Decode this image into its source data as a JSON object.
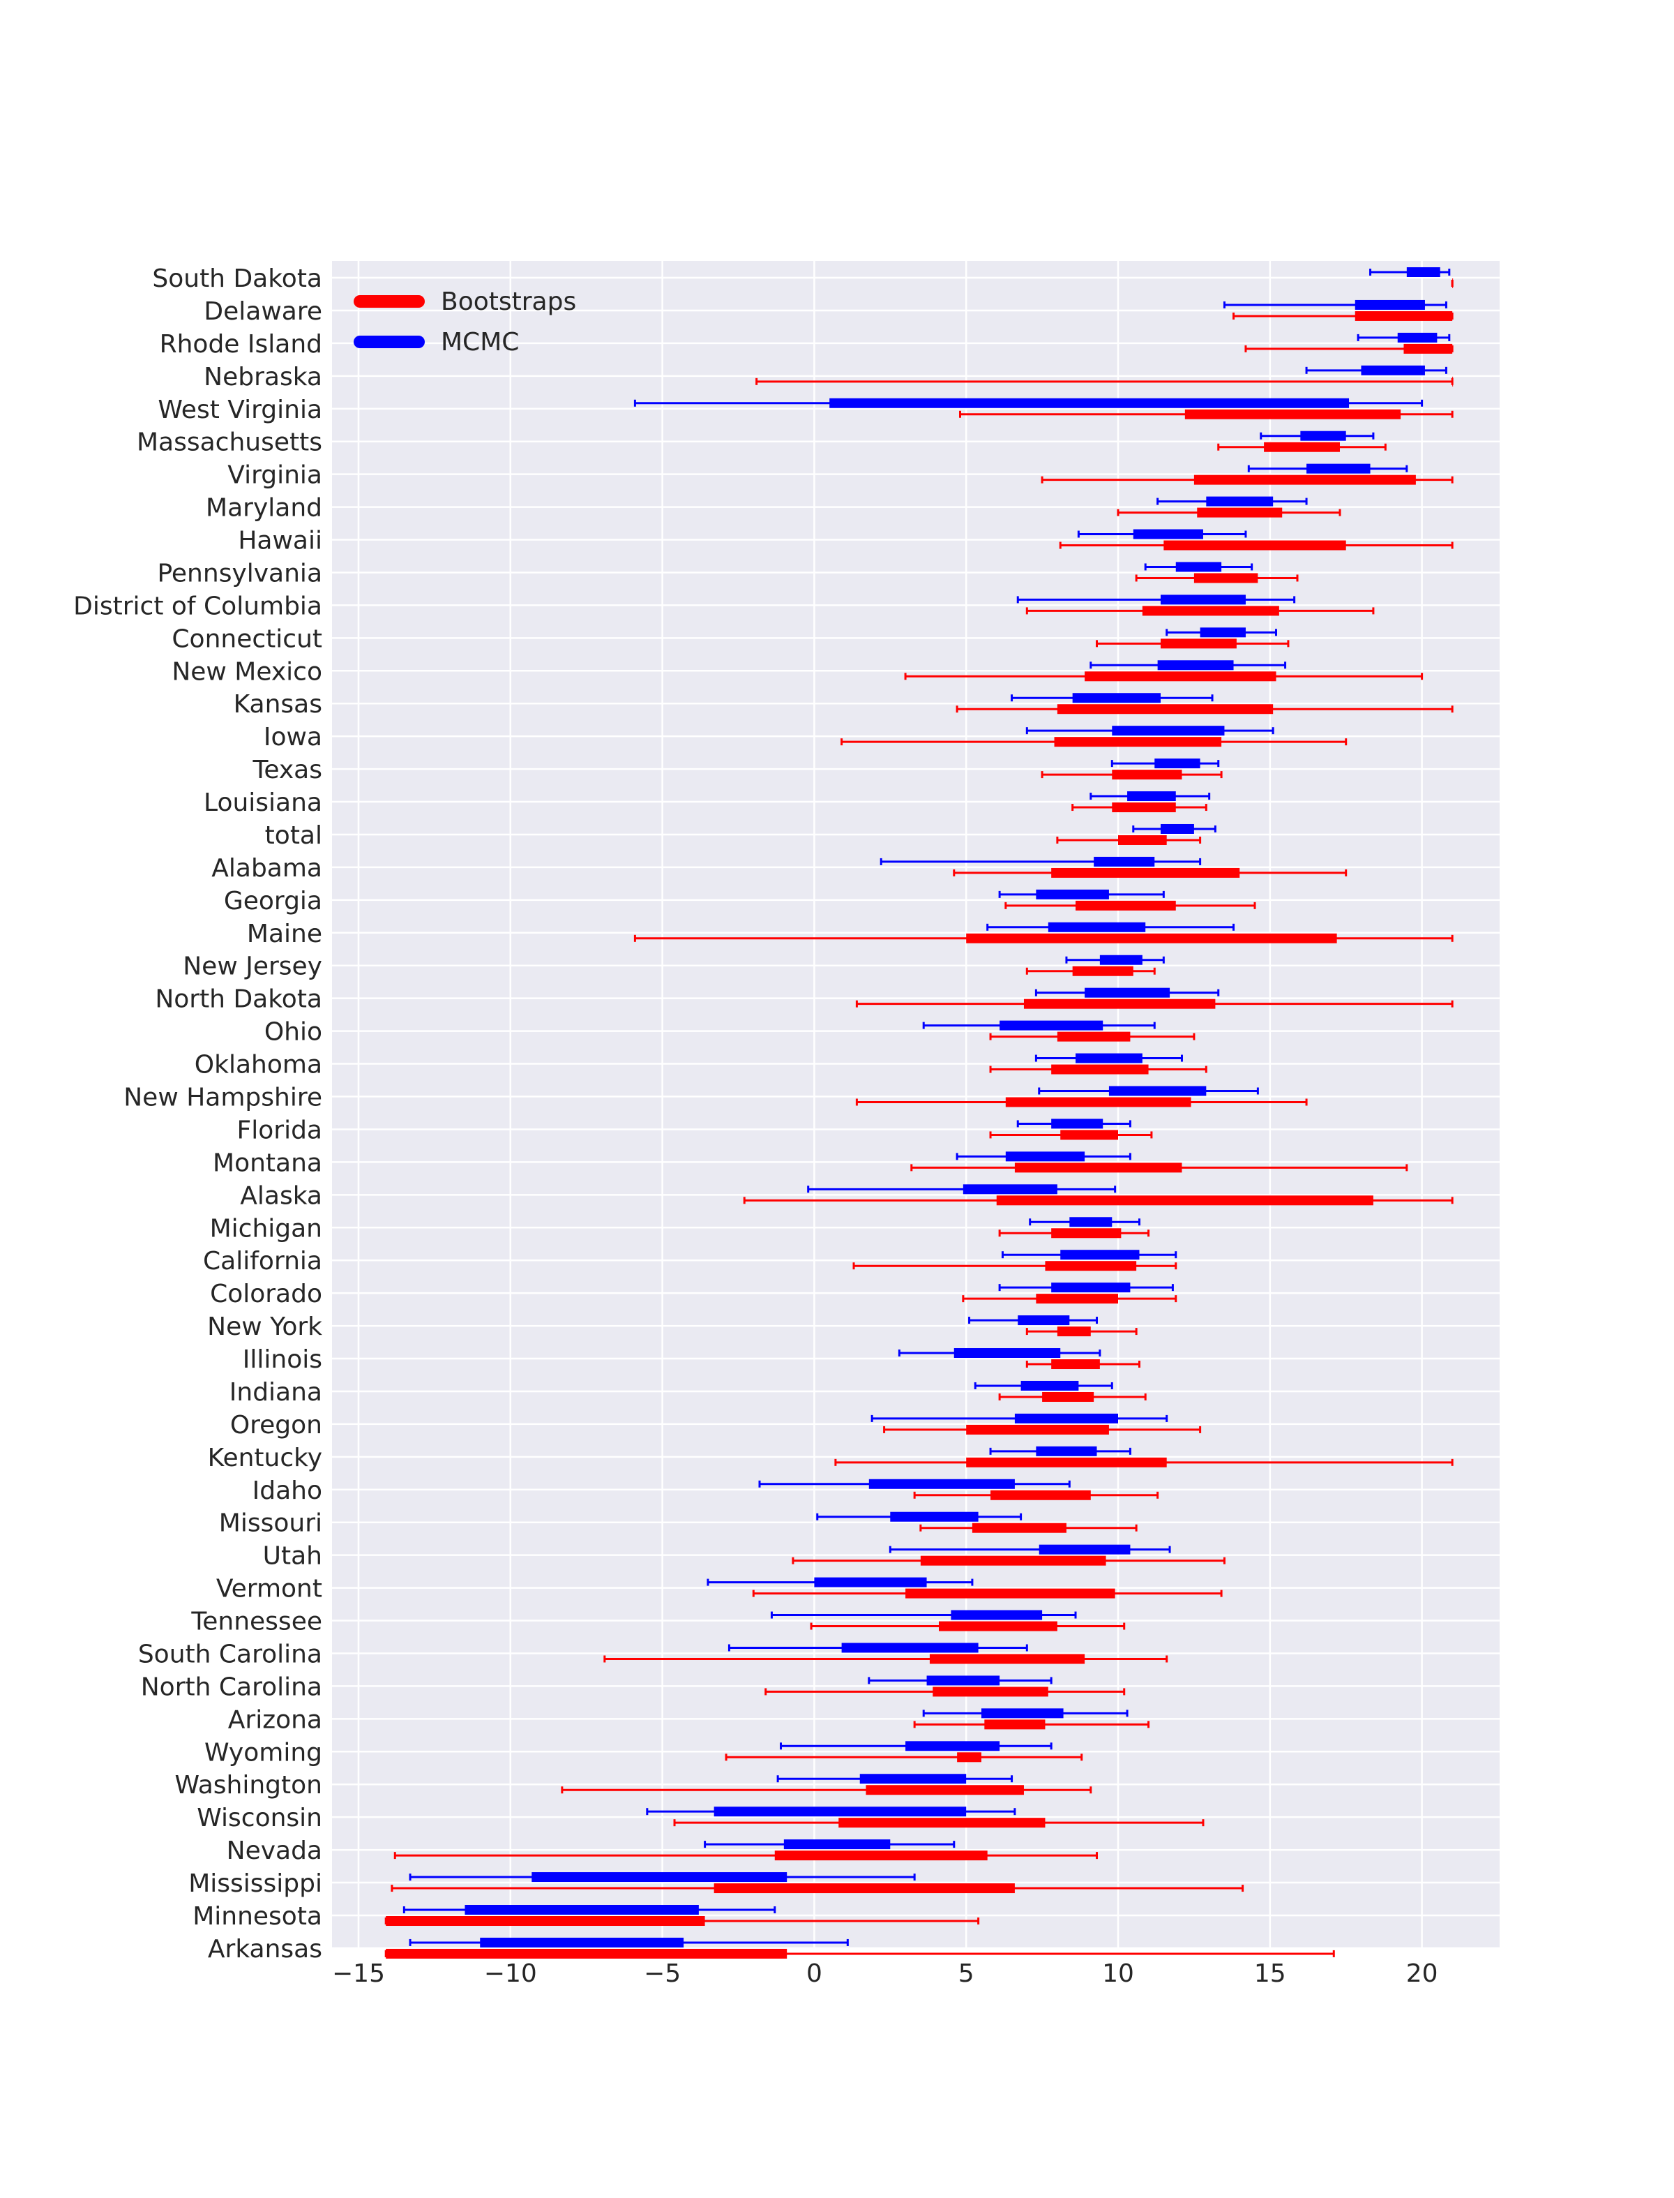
{
  "chart_data": {
    "type": "interval",
    "title": "",
    "xlabel": "",
    "ylabel": "",
    "xlim": [
      -15.5,
      22.5
    ],
    "xticks": [
      -15,
      -10,
      -5,
      0,
      5,
      10,
      15,
      20
    ],
    "xtick_labels": [
      "−15",
      "−10",
      "−5",
      "0",
      "5",
      "10",
      "15",
      "20"
    ],
    "grid": true,
    "legend_position": "top-left",
    "categories": [
      "South Dakota",
      "Delaware",
      "Rhode Island",
      "Nebraska",
      "West Virginia",
      "Massachusetts",
      "Virginia",
      "Maryland",
      "Hawaii",
      "Pennsylvania",
      "District of Columbia",
      "Connecticut",
      "New Mexico",
      "Kansas",
      "Iowa",
      "Texas",
      "Louisiana",
      "total",
      "Alabama",
      "Georgia",
      "Maine",
      "New Jersey",
      "North Dakota",
      "Ohio",
      "Oklahoma",
      "New Hampshire",
      "Florida",
      "Montana",
      "Alaska",
      "Michigan",
      "California",
      "Colorado",
      "New York",
      "Illinois",
      "Indiana",
      "Oregon",
      "Kentucky",
      "Idaho",
      "Missouri",
      "Utah",
      "Vermont",
      "Tennessee",
      "South Carolina",
      "North Carolina",
      "Arizona",
      "Wyoming",
      "Washington",
      "Wisconsin",
      "Nevada",
      "Mississippi",
      "Minnesota",
      "Arkansas"
    ],
    "series": [
      {
        "name": "Bootstraps",
        "color": "#ff0000",
        "intervals": [
          [
            21.0,
            21.0,
            21.0,
            21.0
          ],
          [
            13.8,
            17.8,
            21.0,
            21.0
          ],
          [
            14.2,
            19.4,
            21.0,
            21.0
          ],
          [
            -1.9,
            21.0,
            21.0,
            21.0
          ],
          [
            4.8,
            12.2,
            19.3,
            21.0
          ],
          [
            13.3,
            14.8,
            17.3,
            18.8
          ],
          [
            7.5,
            12.5,
            19.8,
            21.0
          ],
          [
            10.0,
            12.6,
            15.4,
            17.3
          ],
          [
            8.1,
            11.5,
            17.5,
            21.0
          ],
          [
            10.6,
            12.5,
            14.6,
            15.9
          ],
          [
            7.0,
            10.8,
            15.3,
            18.4
          ],
          [
            9.3,
            11.4,
            13.9,
            15.6
          ],
          [
            3.0,
            8.9,
            15.2,
            20.0
          ],
          [
            4.7,
            8.0,
            15.1,
            21.0
          ],
          [
            0.9,
            7.9,
            13.4,
            17.5
          ],
          [
            7.5,
            9.8,
            12.1,
            13.4
          ],
          [
            8.5,
            9.8,
            11.9,
            12.9
          ],
          [
            8.0,
            10.0,
            11.6,
            12.7
          ],
          [
            4.6,
            7.8,
            14.0,
            17.5
          ],
          [
            6.3,
            8.6,
            11.9,
            14.5
          ],
          [
            -5.9,
            5.0,
            17.2,
            21.0
          ],
          [
            7.0,
            8.5,
            10.5,
            11.2
          ],
          [
            1.4,
            6.9,
            13.2,
            21.0
          ],
          [
            5.8,
            8.0,
            10.4,
            12.5
          ],
          [
            5.8,
            7.8,
            11.0,
            12.9
          ],
          [
            1.4,
            6.3,
            12.4,
            16.2
          ],
          [
            5.8,
            8.1,
            10.0,
            11.1
          ],
          [
            3.2,
            6.6,
            12.1,
            19.5
          ],
          [
            -2.3,
            6.0,
            18.4,
            21.0
          ],
          [
            6.1,
            7.8,
            10.1,
            11.0
          ],
          [
            1.3,
            7.6,
            10.6,
            11.9
          ],
          [
            4.9,
            7.3,
            10.0,
            11.9
          ],
          [
            7.0,
            8.0,
            9.1,
            10.6
          ],
          [
            7.0,
            7.8,
            9.4,
            10.7
          ],
          [
            6.1,
            7.5,
            9.2,
            10.9
          ],
          [
            2.3,
            5.0,
            9.7,
            12.7
          ],
          [
            0.7,
            5.0,
            11.6,
            21.0
          ],
          [
            3.3,
            5.8,
            9.1,
            11.3
          ],
          [
            3.5,
            5.2,
            8.3,
            10.6
          ],
          [
            -0.7,
            3.5,
            9.6,
            13.5
          ],
          [
            -2.0,
            3.0,
            9.9,
            13.4
          ],
          [
            -0.1,
            4.1,
            8.0,
            10.2
          ],
          [
            -6.9,
            3.8,
            8.9,
            11.6
          ],
          [
            -1.6,
            3.9,
            7.7,
            10.2
          ],
          [
            3.3,
            5.6,
            7.6,
            11.0
          ],
          [
            -2.9,
            4.7,
            5.5,
            8.8
          ],
          [
            -8.3,
            1.7,
            6.9,
            9.1
          ],
          [
            -4.6,
            0.8,
            7.6,
            12.8
          ],
          [
            -13.8,
            -1.3,
            5.7,
            9.3
          ],
          [
            -13.9,
            -3.3,
            6.6,
            14.1
          ],
          [
            -14.1,
            -14.1,
            -3.6,
            5.4
          ],
          [
            -14.1,
            -14.1,
            -0.9,
            17.1
          ]
        ]
      },
      {
        "name": "MCMC",
        "color": "#0000ff",
        "intervals": [
          [
            18.3,
            19.5,
            20.6,
            20.9
          ],
          [
            13.5,
            17.8,
            20.1,
            20.8
          ],
          [
            17.9,
            19.2,
            20.5,
            20.9
          ],
          [
            16.2,
            18.0,
            20.1,
            20.8
          ],
          [
            -5.9,
            0.5,
            17.6,
            20.0
          ],
          [
            14.7,
            16.0,
            17.5,
            18.4
          ],
          [
            14.3,
            16.2,
            18.3,
            19.5
          ],
          [
            11.3,
            12.9,
            15.1,
            16.2
          ],
          [
            8.7,
            10.5,
            12.8,
            14.2
          ],
          [
            10.9,
            11.9,
            13.4,
            14.4
          ],
          [
            6.7,
            11.4,
            14.2,
            15.8
          ],
          [
            11.6,
            12.7,
            14.2,
            15.2
          ],
          [
            9.1,
            11.3,
            13.8,
            15.5
          ],
          [
            6.5,
            8.5,
            11.4,
            13.1
          ],
          [
            7.0,
            9.8,
            13.5,
            15.1
          ],
          [
            9.8,
            11.2,
            12.7,
            13.3
          ],
          [
            9.1,
            10.3,
            11.9,
            13.0
          ],
          [
            10.5,
            11.4,
            12.5,
            13.2
          ],
          [
            2.2,
            9.2,
            11.2,
            12.7
          ],
          [
            6.1,
            7.3,
            9.7,
            11.5
          ],
          [
            5.7,
            7.7,
            10.9,
            13.8
          ],
          [
            8.3,
            9.4,
            10.8,
            11.5
          ],
          [
            7.3,
            8.9,
            11.7,
            13.3
          ],
          [
            3.6,
            6.1,
            9.5,
            11.2
          ],
          [
            7.3,
            8.6,
            10.8,
            12.1
          ],
          [
            7.4,
            9.7,
            12.9,
            14.6
          ],
          [
            6.7,
            7.8,
            9.5,
            10.4
          ],
          [
            4.7,
            6.3,
            8.9,
            10.4
          ],
          [
            -0.2,
            4.9,
            8.0,
            9.9
          ],
          [
            7.1,
            8.4,
            9.8,
            10.7
          ],
          [
            6.2,
            8.1,
            10.7,
            11.9
          ],
          [
            6.1,
            7.8,
            10.4,
            11.8
          ],
          [
            5.1,
            6.7,
            8.4,
            9.3
          ],
          [
            2.8,
            4.6,
            8.1,
            9.4
          ],
          [
            5.3,
            6.8,
            8.7,
            9.8
          ],
          [
            1.9,
            6.6,
            10.0,
            11.6
          ],
          [
            5.8,
            7.3,
            9.3,
            10.4
          ],
          [
            -1.8,
            1.8,
            6.6,
            8.4
          ],
          [
            0.1,
            2.5,
            5.4,
            6.8
          ],
          [
            2.5,
            7.4,
            10.4,
            11.7
          ],
          [
            -3.5,
            0.0,
            3.7,
            5.2
          ],
          [
            -1.4,
            4.5,
            7.5,
            8.6
          ],
          [
            -2.8,
            0.9,
            5.4,
            7.0
          ],
          [
            1.8,
            3.7,
            6.1,
            7.8
          ],
          [
            3.6,
            5.5,
            8.2,
            10.3
          ],
          [
            -1.1,
            3.0,
            6.1,
            7.8
          ],
          [
            -1.2,
            1.5,
            5.0,
            6.5
          ],
          [
            -5.5,
            -3.3,
            5.0,
            6.6
          ],
          [
            -3.6,
            -1.0,
            2.5,
            4.6
          ],
          [
            -13.3,
            -9.3,
            -0.9,
            3.3
          ],
          [
            -13.5,
            -11.5,
            -3.8,
            -1.3
          ],
          [
            -13.3,
            -11.0,
            -4.3,
            1.1
          ]
        ]
      }
    ]
  }
}
